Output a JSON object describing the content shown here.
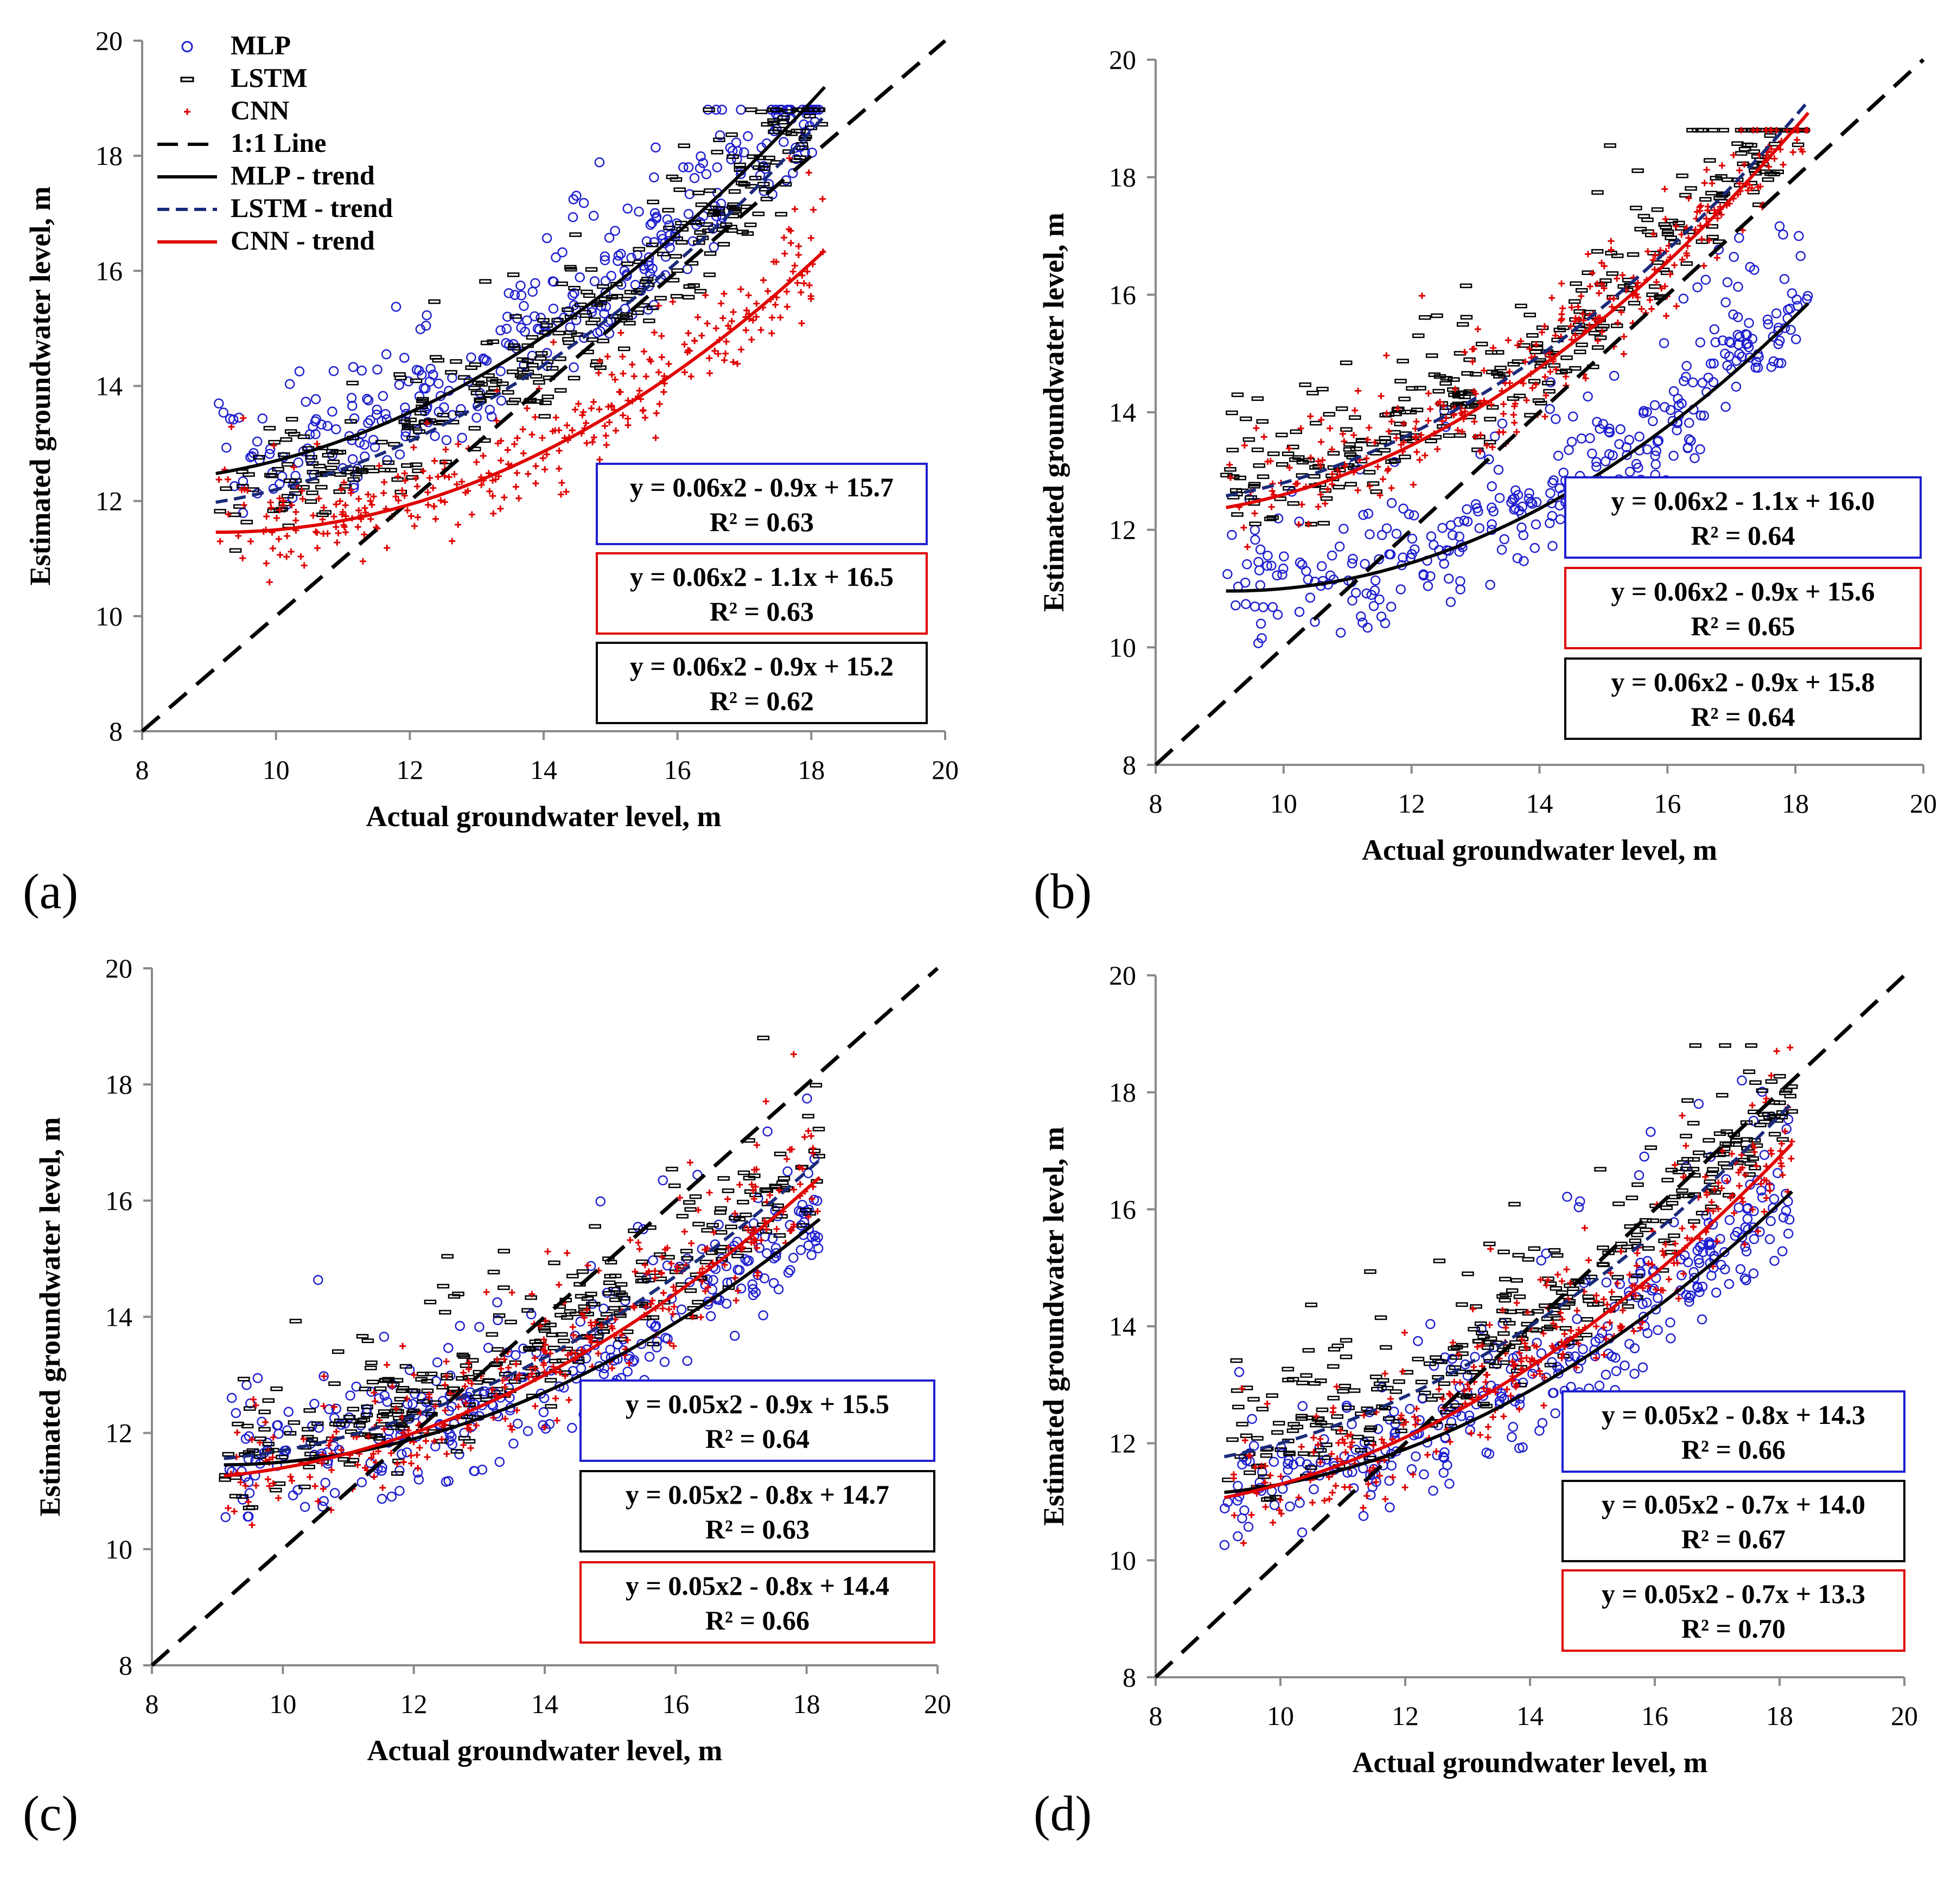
{
  "colors": {
    "mlp": "#1f1fd0",
    "lstm": "#000000",
    "cnn": "#e00000",
    "axis": "#8a8a8a",
    "text": "#000000"
  },
  "chart_data": [
    {
      "id": "a",
      "panel_label": "(a)",
      "type": "scatter",
      "xlabel": "Actual groundwater level, m",
      "ylabel": "Estimated groundwater level, m",
      "xlim": [
        8,
        20
      ],
      "ylim": [
        8,
        20
      ],
      "xticks": [
        "8",
        "10",
        "12",
        "14",
        "16",
        "18",
        "20"
      ],
      "yticks": [
        "8",
        "10",
        "12",
        "14",
        "16",
        "18",
        "20"
      ],
      "legend": {
        "placement": "top-left",
        "items": [
          {
            "label": "MLP",
            "kind": "circle",
            "color": "#1f1fd0"
          },
          {
            "label": "LSTM",
            "kind": "dash",
            "color": "#000000"
          },
          {
            "label": "CNN",
            "kind": "plus",
            "color": "#e00000"
          },
          {
            "label": "1:1 Line",
            "kind": "line-dashed",
            "color": "#000000"
          },
          {
            "label": "MLP - trend",
            "kind": "line",
            "color": "#000000"
          },
          {
            "label": "LSTM - trend",
            "kind": "line-dashed-blue",
            "color": "#1a2a7a"
          },
          {
            "label": "CNN - trend",
            "kind": "line",
            "color": "#e00000"
          }
        ]
      },
      "series": [
        {
          "name": "MLP",
          "marker": "circle",
          "color": "#1f1fd0",
          "spread": 0.75,
          "trend": {
            "a": 0.06,
            "b": -0.9,
            "c": 15.7
          }
        },
        {
          "name": "LSTM",
          "marker": "dash",
          "color": "#000000",
          "spread": 0.8,
          "trend": {
            "a": 0.06,
            "b": -0.9,
            "c": 15.2
          }
        },
        {
          "name": "CNN",
          "marker": "plus",
          "color": "#e00000",
          "spread": 0.65,
          "trend": {
            "a": 0.06,
            "b": -1.1,
            "c": 16.5
          }
        }
      ],
      "x_range": [
        9.1,
        18.2
      ],
      "equations": [
        {
          "line1": "y = 0.06x2 - 0.9x + 15.7",
          "line2": "R² = 0.63",
          "color": "#1f1fd0"
        },
        {
          "line1": "y = 0.06x2 - 1.1x + 16.5",
          "line2": "R² = 0.63",
          "color": "#e00000"
        },
        {
          "line1": "y = 0.06x2 - 0.9x + 15.2",
          "line2": "R² = 0.62",
          "color": "#000000"
        }
      ]
    },
    {
      "id": "b",
      "panel_label": "(b)",
      "type": "scatter",
      "xlabel": "Actual groundwater level, m",
      "ylabel": "Estimated groundwater level, m",
      "xlim": [
        8,
        20
      ],
      "ylim": [
        8,
        20
      ],
      "xticks": [
        "8",
        "10",
        "12",
        "14",
        "16",
        "18",
        "20"
      ],
      "yticks": [
        "8",
        "10",
        "12",
        "14",
        "16",
        "18",
        "20"
      ],
      "series": [
        {
          "name": "MLP",
          "marker": "circle",
          "color": "#1f1fd0",
          "spread": 0.8,
          "trend": {
            "a": 0.06,
            "b": -1.1,
            "c": 16.0
          }
        },
        {
          "name": "LSTM",
          "marker": "dash",
          "color": "#000000",
          "spread": 0.8,
          "trend": {
            "a": 0.06,
            "b": -0.9,
            "c": 15.8
          }
        },
        {
          "name": "CNN",
          "marker": "plus",
          "color": "#e00000",
          "spread": 0.7,
          "trend": {
            "a": 0.06,
            "b": -0.9,
            "c": 15.6
          }
        }
      ],
      "x_range": [
        9.1,
        18.2
      ],
      "equations": [
        {
          "line1": "y = 0.06x2 - 1.1x + 16.0",
          "line2": "R² = 0.64",
          "color": "#1f1fd0"
        },
        {
          "line1": "y = 0.06x2 - 0.9x + 15.6",
          "line2": "R² = 0.65",
          "color": "#e00000"
        },
        {
          "line1": "y = 0.06x2 - 0.9x + 15.8",
          "line2": "R² = 0.64",
          "color": "#000000"
        }
      ]
    },
    {
      "id": "c",
      "panel_label": "(c)",
      "type": "scatter",
      "xlabel": "Actual groundwater level, m",
      "ylabel": "Estimated groundwater level, m",
      "xlim": [
        8,
        20
      ],
      "ylim": [
        8,
        20
      ],
      "xticks": [
        "8",
        "10",
        "12",
        "14",
        "16",
        "18",
        "20"
      ],
      "yticks": [
        "8",
        "10",
        "12",
        "14",
        "16",
        "18",
        "20"
      ],
      "series": [
        {
          "name": "MLP",
          "marker": "circle",
          "color": "#1f1fd0",
          "spread": 0.8,
          "trend": {
            "a": 0.05,
            "b": -0.9,
            "c": 15.5
          }
        },
        {
          "name": "LSTM",
          "marker": "dash",
          "color": "#000000",
          "spread": 0.8,
          "trend": {
            "a": 0.05,
            "b": -0.8,
            "c": 14.7
          }
        },
        {
          "name": "CNN",
          "marker": "plus",
          "color": "#e00000",
          "spread": 0.7,
          "trend": {
            "a": 0.05,
            "b": -0.8,
            "c": 14.4
          }
        }
      ],
      "x_range": [
        9.1,
        18.2
      ],
      "equations": [
        {
          "line1": "y = 0.05x2 - 0.9x + 15.5",
          "line2": "R² = 0.64",
          "color": "#1f1fd0"
        },
        {
          "line1": "y = 0.05x2 - 0.8x + 14.7",
          "line2": "R² = 0.63",
          "color": "#000000"
        },
        {
          "line1": "y = 0.05x2 - 0.8x + 14.4",
          "line2": "R² = 0.66",
          "color": "#e00000"
        }
      ]
    },
    {
      "id": "d",
      "panel_label": "(d)",
      "type": "scatter",
      "xlabel": "Actual groundwater level, m",
      "ylabel": "Estimated groundwater level, m",
      "xlim": [
        8,
        20
      ],
      "ylim": [
        8,
        20
      ],
      "xticks": [
        "8",
        "10",
        "12",
        "14",
        "16",
        "18",
        "20"
      ],
      "yticks": [
        "8",
        "10",
        "12",
        "14",
        "16",
        "18",
        "20"
      ],
      "series": [
        {
          "name": "MLP",
          "marker": "circle",
          "color": "#1f1fd0",
          "spread": 0.8,
          "trend": {
            "a": 0.05,
            "b": -0.8,
            "c": 14.3
          }
        },
        {
          "name": "LSTM",
          "marker": "dash",
          "color": "#000000",
          "spread": 0.8,
          "trend": {
            "a": 0.05,
            "b": -0.7,
            "c": 14.0
          }
        },
        {
          "name": "CNN",
          "marker": "plus",
          "color": "#e00000",
          "spread": 0.7,
          "trend": {
            "a": 0.05,
            "b": -0.7,
            "c": 13.3
          }
        }
      ],
      "x_range": [
        9.1,
        18.2
      ],
      "equations": [
        {
          "line1": "y = 0.05x2 - 0.8x + 14.3",
          "line2": "R² = 0.66",
          "color": "#1f1fd0"
        },
        {
          "line1": "y = 0.05x2 - 0.7x + 14.0",
          "line2": "R² = 0.67",
          "color": "#000000"
        },
        {
          "line1": "y = 0.05x2 - 0.7x + 13.3",
          "line2": "R² = 0.70",
          "color": "#e00000"
        }
      ]
    }
  ]
}
